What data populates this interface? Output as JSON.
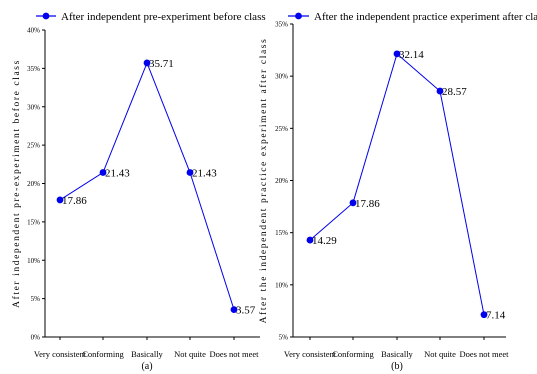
{
  "chart_data": [
    {
      "type": "line",
      "legend": "After independent pre-experiment before class",
      "ylabel": "After independent pre-experiment before class",
      "categories": [
        "Very consistent",
        "Conforming",
        "Basically",
        "Not quite",
        "Does not meet"
      ],
      "values": [
        17.86,
        21.43,
        35.71,
        21.43,
        3.57
      ],
      "data_labels": [
        "17.86",
        "21.43",
        "35.71",
        "21.43",
        "3.57"
      ],
      "ylim": [
        0,
        40
      ],
      "yticks": [
        "0%",
        "5%",
        "10%",
        "15%",
        "20%",
        "25%",
        "30%",
        "35%",
        "40%"
      ],
      "panel_label": "(a)",
      "grid": false,
      "legend_position": "top",
      "color": "#0000ee"
    },
    {
      "type": "line",
      "legend": "After the independent practice experiment after class",
      "ylabel": "After the independent practice experiment after class",
      "categories": [
        "Very consistent",
        "Conforming",
        "Basically",
        "Not quite",
        "Does not meet"
      ],
      "values": [
        14.29,
        17.86,
        32.14,
        28.57,
        7.14
      ],
      "data_labels": [
        "14.29",
        "17.86",
        "32.14",
        "28.57",
        "7.14"
      ],
      "ylim": [
        5,
        35
      ],
      "yticks": [
        "5%",
        "10%",
        "15%",
        "20%",
        "25%",
        "30%",
        "35%"
      ],
      "panel_label": "(b)",
      "grid": false,
      "legend_position": "top",
      "color": "#0000ee"
    }
  ]
}
